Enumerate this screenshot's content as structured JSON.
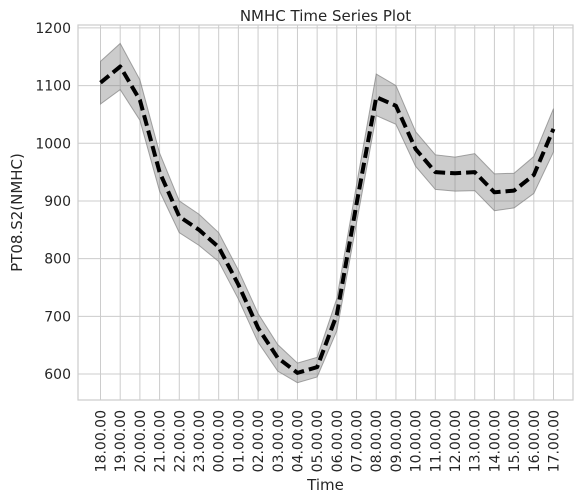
{
  "chart_data": {
    "type": "line",
    "title": "NMHC Time Series Plot",
    "xlabel": "Time",
    "ylabel": "PT08.S2(NMHC)",
    "categories": [
      "18.00.00",
      "19.00.00",
      "20.00.00",
      "21.00.00",
      "22.00.00",
      "23.00.00",
      "00.00.00",
      "01.00.00",
      "02.00.00",
      "03.00.00",
      "04.00.00",
      "05.00.00",
      "06.00.00",
      "07.00.00",
      "08.00.00",
      "09.00.00",
      "10.00.00",
      "11.00.00",
      "12.00.00",
      "13.00.00",
      "14.00.00",
      "15.00.00",
      "16.00.00",
      "17.00.00"
    ],
    "series": [
      {
        "values": [
          1105,
          1133,
          1075,
          950,
          873,
          850,
          820,
          755,
          680,
          628,
          602,
          612,
          703,
          895,
          1080,
          1065,
          990,
          950,
          948,
          950,
          915,
          918,
          945,
          1025
        ],
        "ci_lower": [
          1068,
          1093,
          1040,
          917,
          845,
          823,
          795,
          730,
          655,
          605,
          585,
          595,
          675,
          862,
          1048,
          1033,
          960,
          920,
          917,
          918,
          883,
          888,
          913,
          985
        ],
        "ci_upper": [
          1142,
          1173,
          1110,
          983,
          900,
          877,
          845,
          780,
          705,
          651,
          619,
          629,
          731,
          928,
          1120,
          1100,
          1020,
          980,
          976,
          982,
          947,
          948,
          977,
          1060
        ],
        "color": "#000000",
        "line_style": "dashed",
        "band_color": "#808080"
      }
    ],
    "yticks": [
      600,
      700,
      800,
      900,
      1000,
      1100,
      1200
    ],
    "ylim": [
      555,
      1205
    ],
    "grid": true,
    "legend": "none"
  }
}
